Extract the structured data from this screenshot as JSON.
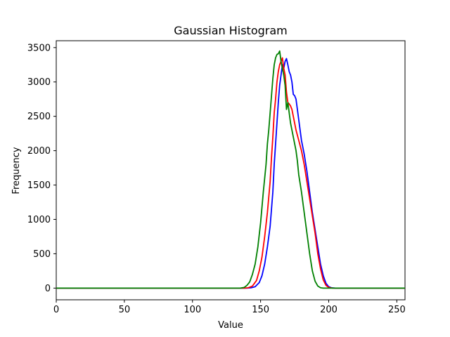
{
  "chart_data": {
    "type": "line",
    "title": "Gaussian Histogram",
    "xlabel": "Value",
    "ylabel": "Frequency",
    "xlim": [
      0,
      256
    ],
    "ylim": [
      -170,
      3600
    ],
    "xticks": [
      0,
      50,
      100,
      150,
      200,
      250
    ],
    "yticks": [
      0,
      500,
      1000,
      1500,
      2000,
      2500,
      3000,
      3500
    ],
    "grid": false,
    "legend": "none",
    "series": [
      {
        "color": "#0000ff",
        "points": [
          [
            0,
            0
          ],
          [
            140,
            0
          ],
          [
            143,
            5
          ],
          [
            146,
            20
          ],
          [
            149,
            80
          ],
          [
            151,
            180
          ],
          [
            153,
            350
          ],
          [
            155,
            600
          ],
          [
            157,
            900
          ],
          [
            159,
            1400
          ],
          [
            160,
            1800
          ],
          [
            161,
            2100
          ],
          [
            162,
            2400
          ],
          [
            163,
            2700
          ],
          [
            164,
            2950
          ],
          [
            165,
            3100
          ],
          [
            166,
            3250
          ],
          [
            167,
            3200
          ],
          [
            168,
            3300
          ],
          [
            169,
            3340
          ],
          [
            170,
            3250
          ],
          [
            171,
            3150
          ],
          [
            172,
            3100
          ],
          [
            173,
            3000
          ],
          [
            174,
            2820
          ],
          [
            175,
            2800
          ],
          [
            176,
            2750
          ],
          [
            177,
            2600
          ],
          [
            178,
            2450
          ],
          [
            179,
            2300
          ],
          [
            180,
            2150
          ],
          [
            182,
            1950
          ],
          [
            184,
            1700
          ],
          [
            186,
            1400
          ],
          [
            188,
            1100
          ],
          [
            190,
            850
          ],
          [
            192,
            600
          ],
          [
            194,
            350
          ],
          [
            196,
            180
          ],
          [
            198,
            70
          ],
          [
            200,
            20
          ],
          [
            202,
            5
          ],
          [
            205,
            0
          ],
          [
            256,
            0
          ]
        ]
      },
      {
        "color": "#ff0000",
        "points": [
          [
            0,
            0
          ],
          [
            138,
            0
          ],
          [
            141,
            5
          ],
          [
            144,
            30
          ],
          [
            147,
            110
          ],
          [
            149,
            250
          ],
          [
            151,
            450
          ],
          [
            153,
            750
          ],
          [
            155,
            1100
          ],
          [
            157,
            1550
          ],
          [
            158,
            1900
          ],
          [
            159,
            2200
          ],
          [
            160,
            2550
          ],
          [
            161,
            2750
          ],
          [
            162,
            3000
          ],
          [
            163,
            3150
          ],
          [
            164,
            3250
          ],
          [
            165,
            3300
          ],
          [
            166,
            3350
          ],
          [
            167,
            3200
          ],
          [
            168,
            3100
          ],
          [
            169,
            2850
          ],
          [
            170,
            2700
          ],
          [
            171,
            2680
          ],
          [
            172,
            2650
          ],
          [
            173,
            2600
          ],
          [
            174,
            2500
          ],
          [
            175,
            2400
          ],
          [
            176,
            2300
          ],
          [
            178,
            2150
          ],
          [
            180,
            2000
          ],
          [
            182,
            1800
          ],
          [
            184,
            1550
          ],
          [
            186,
            1300
          ],
          [
            188,
            1050
          ],
          [
            190,
            800
          ],
          [
            192,
            500
          ],
          [
            194,
            280
          ],
          [
            196,
            120
          ],
          [
            198,
            40
          ],
          [
            200,
            10
          ],
          [
            203,
            0
          ],
          [
            256,
            0
          ]
        ]
      },
      {
        "color": "#008000",
        "points": [
          [
            0,
            0
          ],
          [
            135,
            0
          ],
          [
            138,
            10
          ],
          [
            140,
            40
          ],
          [
            142,
            90
          ],
          [
            144,
            200
          ],
          [
            146,
            350
          ],
          [
            148,
            600
          ],
          [
            150,
            950
          ],
          [
            152,
            1400
          ],
          [
            154,
            1800
          ],
          [
            155,
            2100
          ],
          [
            156,
            2300
          ],
          [
            157,
            2550
          ],
          [
            158,
            2800
          ],
          [
            159,
            3050
          ],
          [
            160,
            3250
          ],
          [
            161,
            3350
          ],
          [
            162,
            3400
          ],
          [
            163,
            3410
          ],
          [
            164,
            3450
          ],
          [
            165,
            3300
          ],
          [
            166,
            3200
          ],
          [
            167,
            3100
          ],
          [
            168,
            2950
          ],
          [
            169,
            2600
          ],
          [
            170,
            2700
          ],
          [
            171,
            2550
          ],
          [
            172,
            2400
          ],
          [
            173,
            2300
          ],
          [
            174,
            2200
          ],
          [
            175,
            2100
          ],
          [
            176,
            2000
          ],
          [
            177,
            1850
          ],
          [
            178,
            1650
          ],
          [
            180,
            1400
          ],
          [
            182,
            1100
          ],
          [
            184,
            800
          ],
          [
            186,
            500
          ],
          [
            188,
            250
          ],
          [
            190,
            100
          ],
          [
            192,
            30
          ],
          [
            194,
            5
          ],
          [
            196,
            0
          ],
          [
            256,
            0
          ]
        ]
      }
    ]
  }
}
